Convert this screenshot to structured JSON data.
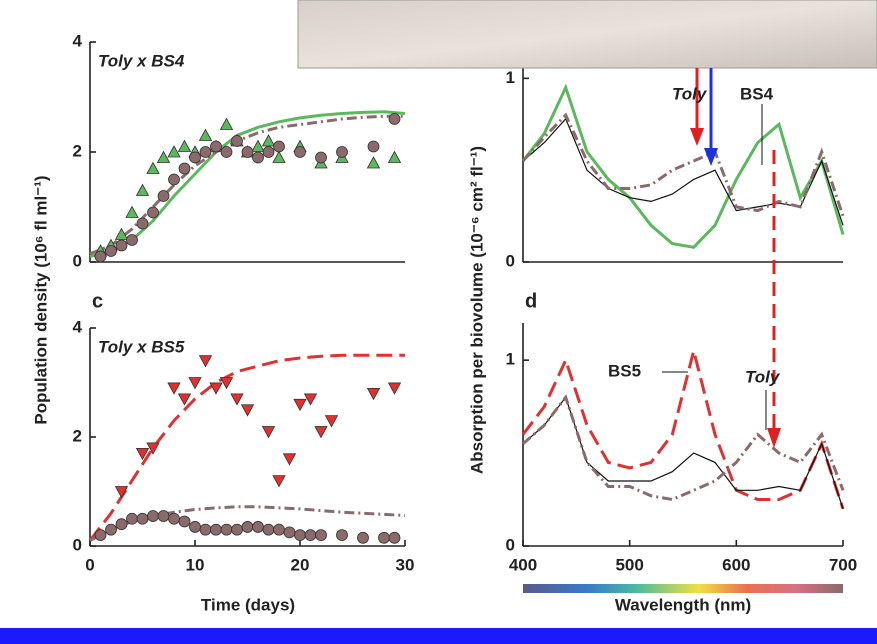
{
  "chart_data": [
    {
      "type": "line",
      "ylabel": "Population density (10⁶ fl ml⁻¹)",
      "annotations": [
        "Toly x BS4"
      ],
      "xlim": [
        0,
        30
      ],
      "ylim": [
        0,
        4
      ],
      "yticks": [
        0,
        2,
        4
      ],
      "series": [
        {
          "mode": "line",
          "color": "#5cb85c",
          "dash": "solid",
          "x": [
            0,
            2,
            4,
            6,
            8,
            10,
            12,
            14,
            16,
            18,
            20,
            22,
            24,
            26,
            28,
            30
          ],
          "values": [
            0.1,
            0.2,
            0.4,
            0.75,
            1.2,
            1.6,
            2.0,
            2.3,
            2.45,
            2.55,
            2.62,
            2.67,
            2.7,
            2.72,
            2.73,
            2.7
          ]
        },
        {
          "mode": "line",
          "color": "#8a6a6a",
          "dash": "dashdot",
          "x": [
            0,
            2,
            4,
            6,
            8,
            10,
            12,
            14,
            16,
            18,
            20,
            22,
            24,
            26,
            28,
            30
          ],
          "values": [
            0.15,
            0.3,
            0.6,
            1.0,
            1.4,
            1.75,
            2.0,
            2.2,
            2.35,
            2.45,
            2.5,
            2.55,
            2.6,
            2.63,
            2.65,
            2.65
          ]
        },
        {
          "mode": "markers",
          "marker": "triangle-up",
          "color": "#5cb85c",
          "x": [
            1,
            2,
            3,
            4,
            5,
            6,
            7,
            8,
            9,
            10,
            11,
            12,
            13,
            14,
            15,
            16,
            17,
            18,
            20,
            22,
            24,
            27,
            29
          ],
          "values": [
            0.2,
            0.3,
            0.5,
            0.9,
            1.3,
            1.7,
            1.9,
            2.0,
            2.1,
            2.0,
            2.3,
            2.1,
            2.5,
            2.2,
            2.0,
            2.1,
            2.2,
            1.9,
            2.1,
            1.8,
            1.9,
            1.8,
            1.9
          ]
        },
        {
          "mode": "markers",
          "marker": "circle",
          "color": "#8a6a6a",
          "x": [
            1,
            2,
            3,
            4,
            5,
            6,
            7,
            8,
            9,
            10,
            11,
            12,
            13,
            14,
            15,
            16,
            17,
            18,
            20,
            22,
            24,
            27,
            29
          ],
          "values": [
            0.1,
            0.2,
            0.3,
            0.4,
            0.7,
            0.9,
            1.2,
            1.5,
            1.7,
            1.9,
            2.0,
            2.1,
            2.0,
            2.2,
            2.0,
            1.9,
            2.0,
            2.1,
            2.0,
            1.9,
            2.0,
            2.1,
            2.6
          ]
        }
      ]
    },
    {
      "type": "line",
      "ylabel": "Absorption per biovolume (10⁻⁶ cm² fl⁻¹)",
      "annotations": [
        "Toly",
        "BS4"
      ],
      "xlim": [
        400,
        700
      ],
      "ylim": [
        0,
        1.1
      ],
      "yticks": [
        0,
        1
      ],
      "x": [
        400,
        420,
        440,
        460,
        480,
        500,
        520,
        540,
        560,
        580,
        600,
        620,
        640,
        660,
        680,
        700
      ],
      "series": [
        {
          "mode": "line",
          "color": "#5cb85c",
          "dash": "solid",
          "values": [
            0.55,
            0.7,
            0.95,
            0.6,
            0.45,
            0.35,
            0.2,
            0.1,
            0.08,
            0.2,
            0.45,
            0.65,
            0.75,
            0.35,
            0.55,
            0.15
          ]
        },
        {
          "mode": "line",
          "color": "#111111",
          "dash": "thin",
          "values": [
            0.55,
            0.65,
            0.78,
            0.5,
            0.4,
            0.35,
            0.33,
            0.37,
            0.45,
            0.5,
            0.28,
            0.3,
            0.32,
            0.3,
            0.55,
            0.2
          ]
        },
        {
          "mode": "line",
          "color": "#8a6a6a",
          "dash": "dashdot",
          "values": [
            0.55,
            0.68,
            0.8,
            0.55,
            0.4,
            0.4,
            0.42,
            0.5,
            0.55,
            0.6,
            0.3,
            0.28,
            0.33,
            0.3,
            0.6,
            0.25
          ]
        }
      ]
    },
    {
      "type": "line",
      "panel_label": "c",
      "xlabel": "Time (days)",
      "annotations": [
        "Toly x BS5"
      ],
      "xlim": [
        0,
        30
      ],
      "ylim": [
        0,
        4
      ],
      "xticks": [
        0,
        10,
        20,
        30
      ],
      "yticks": [
        0,
        2,
        4
      ],
      "series": [
        {
          "mode": "line",
          "color": "#e03030",
          "dash": "dashed",
          "x": [
            0,
            2,
            4,
            6,
            8,
            10,
            12,
            14,
            16,
            18,
            20,
            22,
            24,
            26,
            28,
            30
          ],
          "values": [
            0.1,
            0.6,
            1.2,
            1.8,
            2.3,
            2.7,
            3.0,
            3.2,
            3.3,
            3.4,
            3.45,
            3.48,
            3.5,
            3.5,
            3.5,
            3.5
          ]
        },
        {
          "mode": "line",
          "color": "#8a6a6a",
          "dash": "dashdot",
          "x": [
            0,
            2,
            4,
            6,
            8,
            10,
            12,
            14,
            16,
            18,
            20,
            22,
            24,
            26,
            28,
            30
          ],
          "values": [
            0.1,
            0.3,
            0.45,
            0.55,
            0.62,
            0.67,
            0.7,
            0.72,
            0.72,
            0.7,
            0.68,
            0.65,
            0.62,
            0.6,
            0.58,
            0.56
          ]
        },
        {
          "mode": "markers",
          "marker": "triangle-down",
          "color": "#e03030",
          "x": [
            3,
            5,
            6,
            8,
            9,
            10,
            11,
            12,
            13,
            14,
            15,
            17,
            18,
            19,
            20,
            21,
            22,
            23,
            27,
            29
          ],
          "values": [
            1.0,
            1.7,
            1.8,
            2.9,
            2.7,
            3.0,
            3.4,
            2.9,
            3.0,
            2.7,
            2.5,
            2.1,
            1.2,
            1.6,
            2.6,
            2.7,
            2.1,
            2.3,
            2.8,
            2.9
          ]
        },
        {
          "mode": "markers",
          "marker": "circle",
          "color": "#8a6a6a",
          "x": [
            1,
            2,
            3,
            4,
            5,
            6,
            7,
            8,
            9,
            10,
            11,
            12,
            13,
            14,
            15,
            16,
            17,
            18,
            19,
            20,
            21,
            22,
            24,
            26,
            28,
            29
          ],
          "values": [
            0.2,
            0.3,
            0.4,
            0.5,
            0.5,
            0.55,
            0.55,
            0.5,
            0.45,
            0.35,
            0.3,
            0.3,
            0.3,
            0.3,
            0.35,
            0.35,
            0.3,
            0.3,
            0.25,
            0.2,
            0.2,
            0.2,
            0.2,
            0.15,
            0.15,
            0.15
          ]
        }
      ]
    },
    {
      "type": "line",
      "panel_label": "d",
      "xlabel": "Wavelength (nm)",
      "annotations": [
        "BS5",
        "Toly"
      ],
      "xlim": [
        400,
        700
      ],
      "ylim": [
        0,
        1.2
      ],
      "xticks": [
        400,
        500,
        600,
        700
      ],
      "yticks": [
        0,
        1
      ],
      "x": [
        400,
        420,
        440,
        460,
        480,
        500,
        520,
        540,
        560,
        580,
        600,
        620,
        640,
        660,
        680,
        700
      ],
      "series": [
        {
          "mode": "line",
          "color": "#e03030",
          "dash": "dashed",
          "values": [
            0.6,
            0.75,
            1.0,
            0.65,
            0.45,
            0.42,
            0.45,
            0.6,
            1.05,
            0.6,
            0.3,
            0.25,
            0.25,
            0.3,
            0.55,
            0.2
          ]
        },
        {
          "mode": "line",
          "color": "#111111",
          "dash": "thin",
          "values": [
            0.55,
            0.65,
            0.8,
            0.45,
            0.35,
            0.35,
            0.35,
            0.4,
            0.5,
            0.45,
            0.3,
            0.3,
            0.32,
            0.3,
            0.55,
            0.2
          ]
        },
        {
          "mode": "line",
          "color": "#8a6a6a",
          "dash": "dashdot",
          "values": [
            0.55,
            0.65,
            0.8,
            0.45,
            0.32,
            0.32,
            0.27,
            0.25,
            0.3,
            0.35,
            0.45,
            0.6,
            0.5,
            0.45,
            0.6,
            0.3
          ]
        }
      ]
    }
  ]
}
